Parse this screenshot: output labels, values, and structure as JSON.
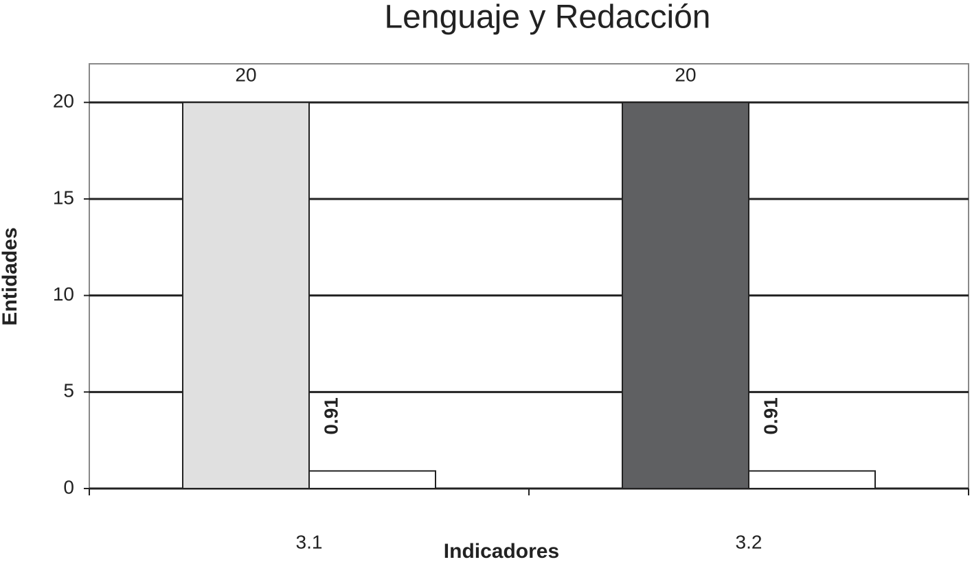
{
  "chart_data": {
    "type": "bar",
    "title": "Lenguaje y Redacción",
    "x_label": "Indicadores",
    "y_label": "Entidades",
    "categories": [
      "3.1",
      "3.2"
    ],
    "series": [
      {
        "colors": [
          "#e0e0e0",
          "#5f6062"
        ],
        "values": [
          20,
          20
        ]
      },
      {
        "color": "#ffffff",
        "values": [
          0.91,
          0.91
        ]
      }
    ],
    "ylim": [
      0,
      22
    ],
    "yticks": [
      0,
      5,
      10,
      15,
      20
    ],
    "grid": true
  }
}
